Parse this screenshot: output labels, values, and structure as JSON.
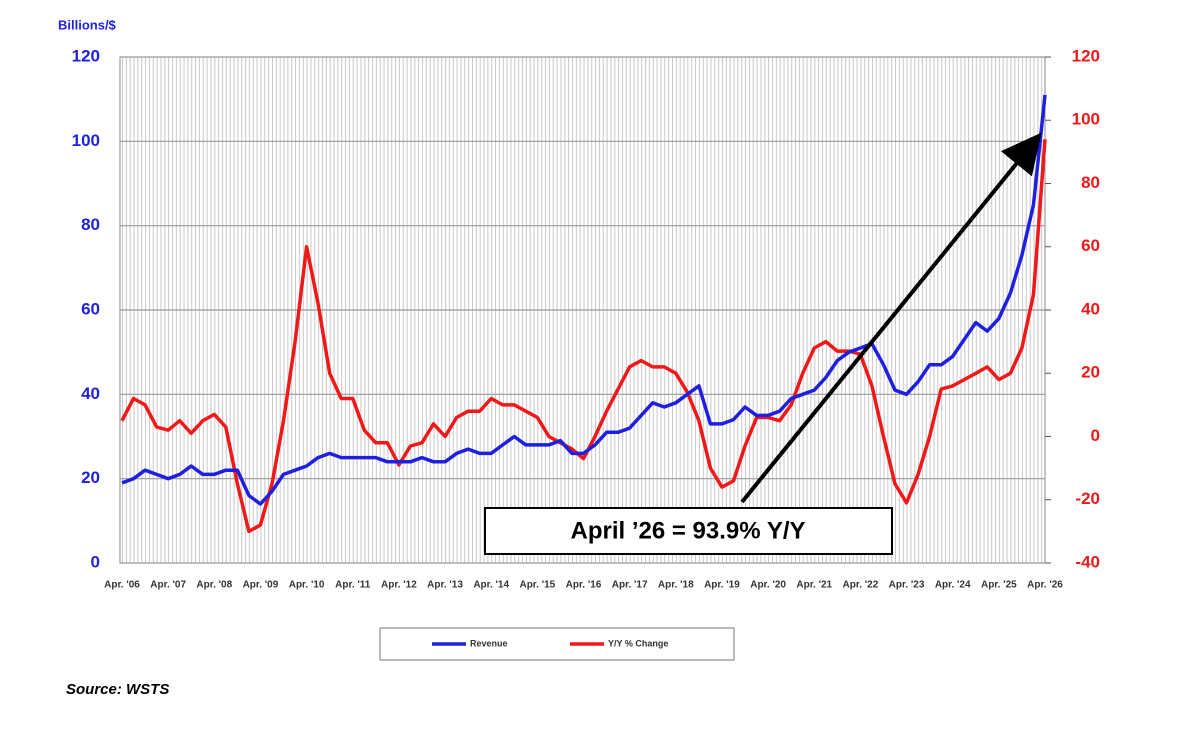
{
  "chart_data": {
    "type": "line",
    "ylabel": "Billions/$",
    "source": "Source: WSTS",
    "annotation": "April ’26 = 93.9% Y/Y",
    "categories": [
      "Apr. '06",
      null,
      null,
      null,
      "Apr. '07",
      null,
      null,
      null,
      "Apr. '08",
      null,
      null,
      null,
      "Apr. '09",
      null,
      null,
      null,
      "Apr. '10",
      null,
      null,
      null,
      "Apr. '11",
      null,
      null,
      null,
      "Apr. '12",
      null,
      null,
      null,
      "Apr. '13",
      null,
      null,
      null,
      "Apr. '14",
      null,
      null,
      null,
      "Apr. '15",
      null,
      null,
      null,
      "Apr. '16",
      null,
      null,
      null,
      "Apr. '17",
      null,
      null,
      null,
      "Apr. '18",
      null,
      null,
      null,
      "Apr. '19",
      null,
      null,
      null,
      "Apr. '20",
      null,
      null,
      null,
      "Apr. '21",
      null,
      null,
      null,
      "Apr. '22",
      null,
      null,
      null,
      "Apr. '23",
      null,
      null,
      null,
      "Apr. '24",
      null,
      null,
      null,
      "Apr. '25",
      null,
      null,
      null,
      "Apr. '26"
    ],
    "series": [
      {
        "name": "Revenue",
        "color": "#1f1fe0",
        "axis": "y",
        "values": [
          19,
          20,
          22,
          21,
          20,
          21,
          23,
          21,
          21,
          22,
          22,
          16,
          14,
          17,
          21,
          22,
          23,
          25,
          26,
          25,
          25,
          25,
          25,
          24,
          24,
          24,
          25,
          24,
          24,
          26,
          27,
          26,
          26,
          28,
          30,
          28,
          28,
          28,
          29,
          26,
          26,
          28,
          31,
          31,
          32,
          35,
          38,
          37,
          38,
          40,
          42,
          33,
          33,
          34,
          37,
          35,
          35,
          36,
          39,
          40,
          41,
          44,
          48,
          50,
          51,
          52,
          47,
          41,
          40,
          43,
          47,
          47,
          49,
          53,
          57,
          55,
          58,
          64,
          73,
          85,
          111
        ]
      },
      {
        "name": "Y/Y % Change",
        "color": "#f01818",
        "axis": "y2",
        "values": [
          5,
          12,
          10,
          3,
          2,
          5,
          1,
          5,
          7,
          3,
          -15,
          -30,
          -28,
          -15,
          5,
          30,
          60,
          42,
          20,
          12,
          12,
          2,
          -2,
          -2,
          -9,
          -3,
          -2,
          4,
          0,
          6,
          8,
          8,
          12,
          10,
          10,
          8,
          6,
          0,
          -2,
          -4,
          -7,
          0,
          8,
          15,
          22,
          24,
          22,
          22,
          20,
          14,
          5,
          -10,
          -16,
          -14,
          -3,
          6,
          6,
          5,
          10,
          20,
          28,
          30,
          27,
          27,
          26,
          16,
          0,
          -15,
          -21,
          -12,
          0,
          15,
          16,
          18,
          20,
          22,
          18,
          20,
          28,
          45,
          94
        ]
      }
    ],
    "ylim": [
      0,
      120
    ],
    "yticks": [
      0,
      20,
      40,
      60,
      80,
      100,
      120
    ],
    "y2lim": [
      -40,
      120
    ],
    "y2ticks": [
      -40,
      -20,
      0,
      20,
      40,
      60,
      80,
      100,
      120
    ],
    "grid": true
  }
}
